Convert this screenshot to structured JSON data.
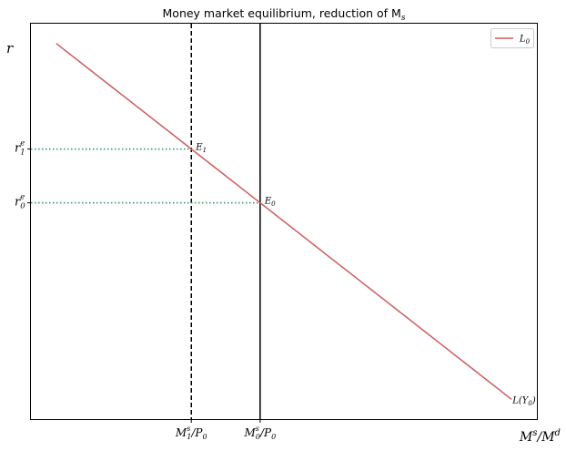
{
  "chart_data": {
    "type": "line",
    "title": "Money market equilibrium, reduction of M",
    "title_sub": "s",
    "axis_labels": {
      "y": "r",
      "x_base": "M",
      "x_sup1": "s",
      "x_mid": "/M",
      "x_sup2": "d"
    },
    "x_ticks": [
      {
        "base": "M",
        "sup": "s",
        "sub": "1",
        "rest": "/P",
        "rest_sub": "0"
      },
      {
        "base": "M",
        "sup": "s",
        "sub": "0",
        "rest": "/P",
        "rest_sub": "0"
      }
    ],
    "y_ticks": [
      {
        "base": "r",
        "sup": "e",
        "sub": "1"
      },
      {
        "base": "r",
        "sup": "e",
        "sub": "0"
      }
    ],
    "xlim": [
      0,
      100
    ],
    "ylim": [
      0,
      100
    ],
    "series": [
      {
        "name": "L0",
        "legend_base": "L",
        "legend_sub": "0",
        "end_label_base": "L(Y",
        "end_label_sub": "0",
        "end_label_tail": ")",
        "color": "#cd5c5c",
        "x": [
          5,
          95
        ],
        "y": [
          95,
          5
        ]
      }
    ],
    "vlines": [
      {
        "x": 31.7,
        "style": "dashed",
        "color": "#000000"
      },
      {
        "x": 45.3,
        "style": "solid",
        "color": "#000000"
      }
    ],
    "hlines": [
      {
        "y": 68.3,
        "x_to": 31.7,
        "style": "dotted",
        "color": "#2e8b57"
      },
      {
        "y": 54.7,
        "x_to": 45.3,
        "style": "dotted",
        "color": "#2e8b57"
      }
    ],
    "points": [
      {
        "label_base": "E",
        "label_sub": "1",
        "x": 31.7,
        "y": 68.3
      },
      {
        "label_base": "E",
        "label_sub": "0",
        "x": 45.3,
        "y": 54.7
      }
    ],
    "grid": false,
    "legend_position": "top-right"
  }
}
